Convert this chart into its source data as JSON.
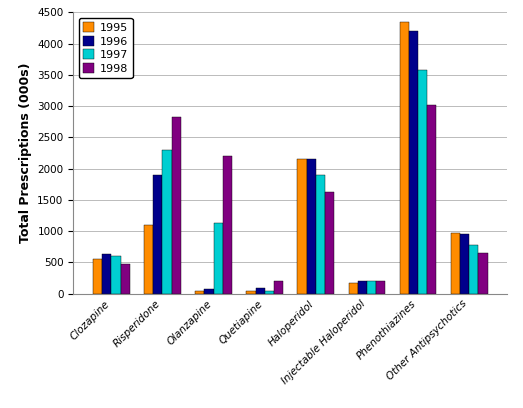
{
  "categories": [
    "Clozapine",
    "Risperidone",
    "Olanzapine",
    "Quetiapine",
    "Haloperidol",
    "Injectable Haloperidol",
    "Phenothiazines",
    "Other Antipsychotics"
  ],
  "years": [
    "1995",
    "1996",
    "1997",
    "1998"
  ],
  "values": {
    "1995": [
      550,
      1100,
      50,
      50,
      2150,
      175,
      4350,
      975
    ],
    "1996": [
      640,
      1900,
      75,
      100,
      2150,
      200,
      4200,
      950
    ],
    "1997": [
      600,
      2300,
      1125,
      50,
      1900,
      210,
      3575,
      775
    ],
    "1998": [
      475,
      2825,
      2200,
      200,
      1625,
      200,
      3025,
      650
    ]
  },
  "bar_colors": {
    "1995": "#FF8C00",
    "1996": "#00008B",
    "1997": "#00CED1",
    "1998": "#800080"
  },
  "ylabel": "Total Prescriptions (000s)",
  "ylim": [
    0,
    4500
  ],
  "yticks": [
    0,
    500,
    1000,
    1500,
    2000,
    2500,
    3000,
    3500,
    4000,
    4500
  ],
  "background_color": "#ffffff",
  "grid_color": "#bbbbbb",
  "bar_width": 0.18,
  "legend_fontsize": 8,
  "tick_fontsize": 7.5,
  "ylabel_fontsize": 9
}
